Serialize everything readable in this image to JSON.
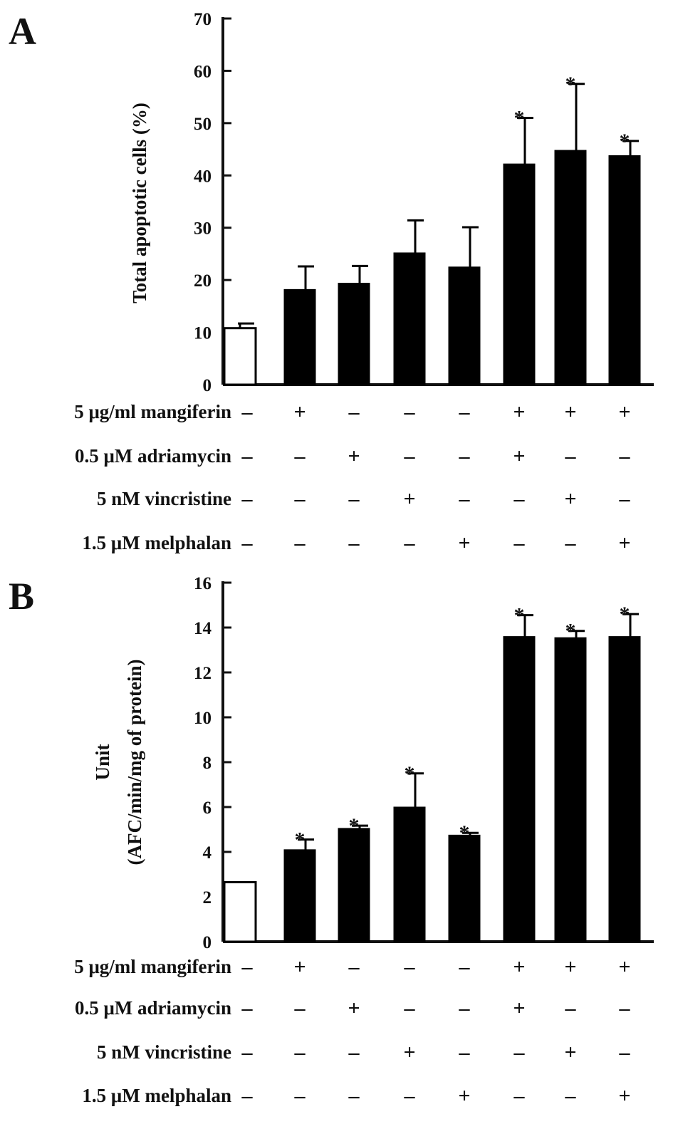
{
  "chart_data": [
    {
      "type": "bar",
      "panel": "A",
      "ylabel": "Total apoptotic cells (%)",
      "ylim": [
        0,
        70
      ],
      "yticks": [
        0,
        10,
        20,
        30,
        40,
        50,
        60,
        70
      ],
      "values": [
        10.8,
        18.2,
        19.4,
        25.2,
        22.5,
        42.2,
        44.8,
        43.8
      ],
      "errors": [
        0.9,
        4.4,
        3.3,
        6.2,
        7.6,
        8.8,
        12.7,
        2.8
      ],
      "significant": [
        false,
        false,
        false,
        false,
        false,
        true,
        true,
        true
      ],
      "open_bar": [
        true,
        false,
        false,
        false,
        false,
        false,
        false,
        false
      ],
      "treatments": [
        {
          "label": "5 μg/ml mangiferin",
          "marks": [
            "–",
            "+",
            "–",
            "–",
            "–",
            "+",
            "+",
            "+"
          ]
        },
        {
          "label": "0.5 μM adriamycin",
          "marks": [
            "–",
            "–",
            "+",
            "–",
            "–",
            "+",
            "–",
            "–"
          ]
        },
        {
          "label": "5 nM vincristine",
          "marks": [
            "–",
            "–",
            "–",
            "+",
            "–",
            "–",
            "+",
            "–"
          ]
        },
        {
          "label": "1.5 μM melphalan",
          "marks": [
            "–",
            "–",
            "–",
            "–",
            "+",
            "–",
            "–",
            "+"
          ]
        }
      ]
    },
    {
      "type": "bar",
      "panel": "B",
      "ylabel": "Unit",
      "ylabel2": "(AFC/min/mg of protein)",
      "ylim": [
        0,
        16
      ],
      "yticks": [
        0,
        2,
        4,
        6,
        8,
        10,
        12,
        14,
        16
      ],
      "values": [
        2.65,
        4.1,
        5.05,
        6.0,
        4.75,
        13.6,
        13.55,
        13.6
      ],
      "errors": [
        0.0,
        0.45,
        0.12,
        1.5,
        0.1,
        0.95,
        0.3,
        1.0
      ],
      "significant": [
        false,
        true,
        true,
        true,
        true,
        true,
        true,
        true
      ],
      "open_bar": [
        true,
        false,
        false,
        false,
        false,
        false,
        false,
        false
      ],
      "treatments": [
        {
          "label": "5 μg/ml mangiferin",
          "marks": [
            "–",
            "+",
            "–",
            "–",
            "–",
            "+",
            "+",
            "+"
          ]
        },
        {
          "label": "0.5 μM adriamycin",
          "marks": [
            "–",
            "–",
            "+",
            "–",
            "–",
            "+",
            "–",
            "–"
          ]
        },
        {
          "label": "5 nM vincristine",
          "marks": [
            "–",
            "–",
            "–",
            "+",
            "–",
            "–",
            "+",
            "–"
          ]
        },
        {
          "label": "1.5 μM melphalan",
          "marks": [
            "–",
            "–",
            "–",
            "–",
            "+",
            "–",
            "–",
            "+"
          ]
        }
      ]
    }
  ]
}
